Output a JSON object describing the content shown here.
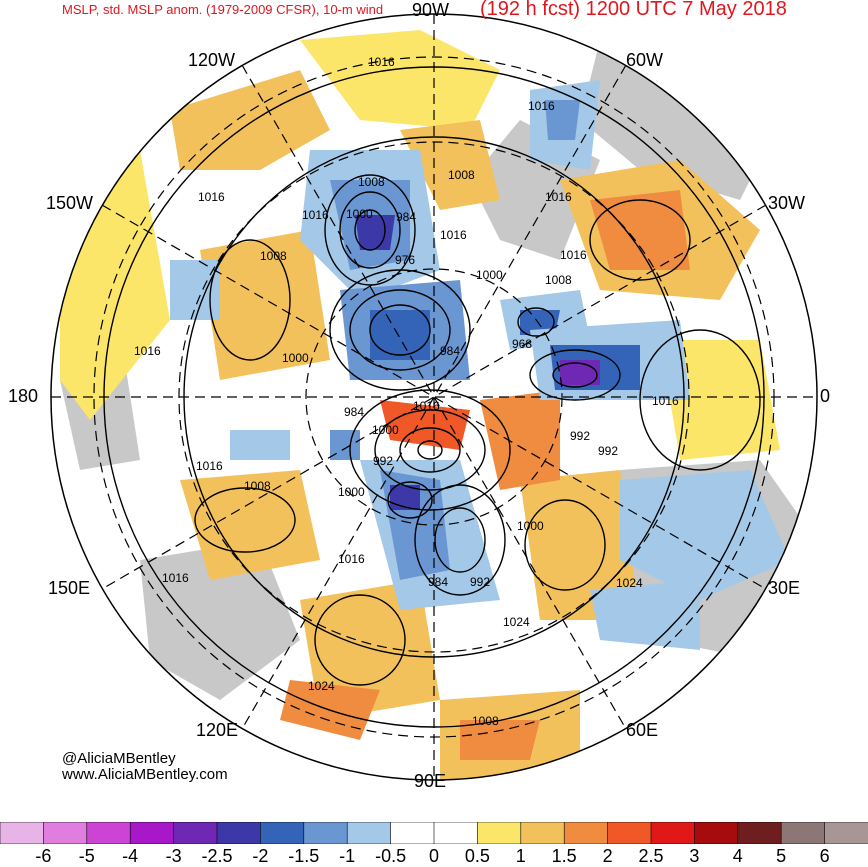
{
  "header": {
    "left": "MSLP, std. MSLP anom. (1979-2009 CFSR), 10-m wind",
    "right": "(192 h fcst) 1200 UTC 7 May 2018"
  },
  "longitudes": {
    "top": "90W",
    "top_left": "120W",
    "top_right": "60W",
    "upper_left": "150W",
    "upper_right": "30W",
    "left": "180",
    "right": "0",
    "lower_left": "150E",
    "lower_right": "30E",
    "bottom_left": "120E",
    "bottom_right": "60E",
    "bottom": "90E"
  },
  "credit": {
    "twitter": "@AliciaMBentley",
    "website": "www.AliciaMBentley.com"
  },
  "isobar_labels": [
    "1016",
    "1016",
    "1016",
    "1016",
    "1016",
    "1016",
    "1016",
    "1016",
    "1016",
    "1016",
    "1016",
    "1016",
    "1016",
    "1024",
    "1024",
    "1024",
    "1008",
    "1008",
    "1008",
    "1008",
    "1008",
    "1008",
    "1000",
    "1000",
    "1000",
    "1000",
    "1000",
    "1000",
    "992",
    "992",
    "992",
    "992",
    "984",
    "984",
    "984",
    "984",
    "976",
    "968"
  ],
  "colorbar": {
    "labels": [
      "-6",
      "-5",
      "-4",
      "-3",
      "-2.5",
      "-2",
      "-1.5",
      "-1",
      "-0.5",
      "0",
      "0.5",
      "1",
      "1.5",
      "2",
      "2.5",
      "3",
      "4",
      "5",
      "6"
    ],
    "colors": [
      "#e8b4e8",
      "#e07ee0",
      "#cc44d4",
      "#a818c8",
      "#6e28b4",
      "#3c38a8",
      "#3464b8",
      "#6a96d2",
      "#a4c8e8",
      "#ffffff",
      "#ffffff",
      "#fbe66a",
      "#f3c15c",
      "#f08c40",
      "#f05828",
      "#e01818",
      "#a60c0c",
      "#6e1e1e",
      "#8c7676",
      "#a89696"
    ]
  },
  "colors": {
    "land": "#c8c8c8",
    "ocean": "#ffffff",
    "title": "#e0161f"
  }
}
